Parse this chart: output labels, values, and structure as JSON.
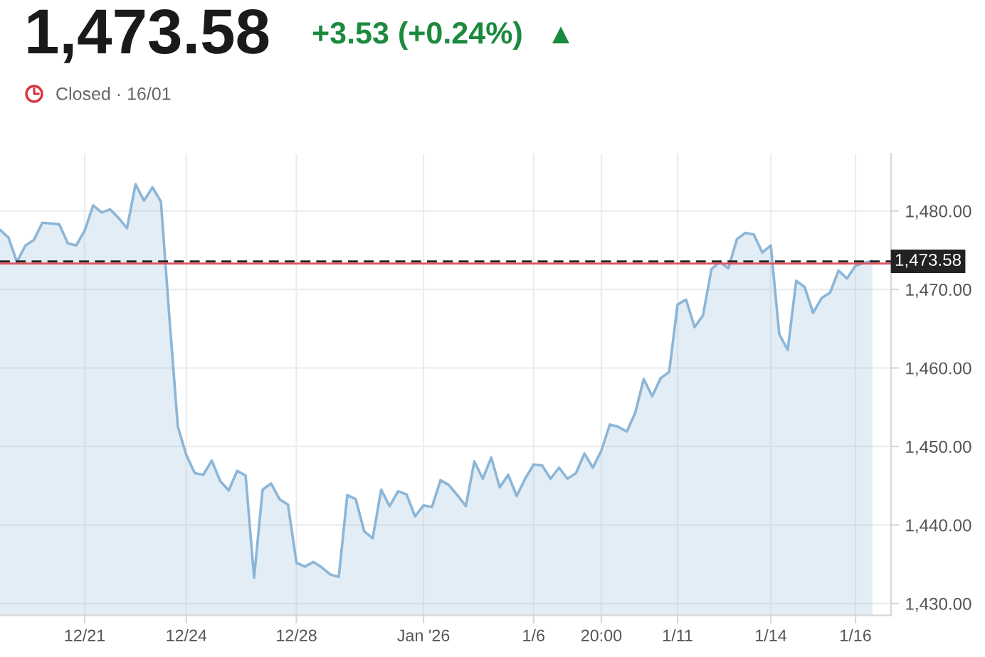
{
  "chart_data": {
    "type": "area",
    "title": "1,473.58",
    "subtitle": "Closed · 16/01",
    "annotations": [
      "+3.53 (+0.24%)"
    ],
    "categories": [
      null,
      null,
      null,
      null,
      null,
      null,
      null,
      null,
      null,
      null,
      "12/21",
      null,
      null,
      null,
      null,
      null,
      null,
      null,
      null,
      null,
      null,
      null,
      "12/24",
      null,
      null,
      null,
      null,
      null,
      null,
      null,
      null,
      null,
      null,
      null,
      null,
      "12/28",
      null,
      null,
      null,
      null,
      null,
      null,
      null,
      null,
      null,
      null,
      null,
      null,
      null,
      null,
      "Jan '26",
      null,
      null,
      null,
      null,
      null,
      null,
      null,
      null,
      null,
      null,
      null,
      null,
      "1/6",
      null,
      null,
      null,
      null,
      null,
      null,
      null,
      "20:00",
      null,
      null,
      null,
      null,
      null,
      null,
      null,
      null,
      "1/11",
      null,
      null,
      null,
      null,
      null,
      null,
      null,
      null,
      null,
      null,
      "1/14",
      null,
      null,
      null,
      null,
      null,
      null,
      null,
      null,
      null,
      "1/16",
      null,
      null
    ],
    "series": [
      {
        "color": "#8cb6d8",
        "values": [
          1477.6,
          1476.6,
          1473.5,
          1475.6,
          1476.3,
          1478.5,
          1478.4,
          1478.3,
          1475.9,
          1475.6,
          1477.5,
          1480.7,
          1479.8,
          1480.2,
          1479.1,
          1477.8,
          1483.4,
          1481.3,
          1483.0,
          1481.2,
          1466.4,
          1452.5,
          1448.9,
          1446.6,
          1446.4,
          1448.2,
          1445.6,
          1444.4,
          1446.9,
          1446.3,
          1433.3,
          1444.5,
          1445.3,
          1443.3,
          1442.6,
          1435.2,
          1434.7,
          1435.3,
          1434.6,
          1433.7,
          1433.4,
          1443.8,
          1443.3,
          1439.2,
          1438.3,
          1444.5,
          1442.4,
          1444.3,
          1443.9,
          1441.1,
          1442.5,
          1442.3,
          1445.7,
          1445.1,
          1443.8,
          1442.4,
          1448.1,
          1445.9,
          1448.6,
          1444.8,
          1446.4,
          1443.7,
          1445.9,
          1447.7,
          1447.6,
          1445.9,
          1447.3,
          1445.9,
          1446.6,
          1449.1,
          1447.3,
          1449.5,
          1452.8,
          1452.5,
          1451.9,
          1454.3,
          1458.6,
          1456.4,
          1458.7,
          1459.5,
          1468.1,
          1468.7,
          1465.2,
          1466.7,
          1472.6,
          1473.5,
          1472.7,
          1476.4,
          1477.2,
          1477.0,
          1474.7,
          1475.6,
          1464.3,
          1462.3,
          1471.1,
          1470.3,
          1467.0,
          1468.9,
          1469.6,
          1472.4,
          1471.4,
          1473.0,
          1473.4,
          1473.6
        ]
      }
    ],
    "ylim": [
      1428.5,
      1487.3
    ],
    "yticks": [
      {
        "value": 1430,
        "label": "1,430.00"
      },
      {
        "value": 1440,
        "label": "1,440.00"
      },
      {
        "value": 1450,
        "label": "1,450.00"
      },
      {
        "value": 1460,
        "label": "1,460.00"
      },
      {
        "value": 1470,
        "label": "1,470.00"
      },
      {
        "value": 1480,
        "label": "1,480.00"
      }
    ],
    "ref_lines": [
      {
        "axis": "y",
        "value": 1473.3,
        "color": "#e0505c",
        "line_style": "solid"
      },
      {
        "axis": "y",
        "value": 1473.58,
        "label": "1,473.58",
        "color": "#222222",
        "line_style": "dashed"
      }
    ],
    "grid": true,
    "line_style": "solid",
    "marker": "none"
  }
}
